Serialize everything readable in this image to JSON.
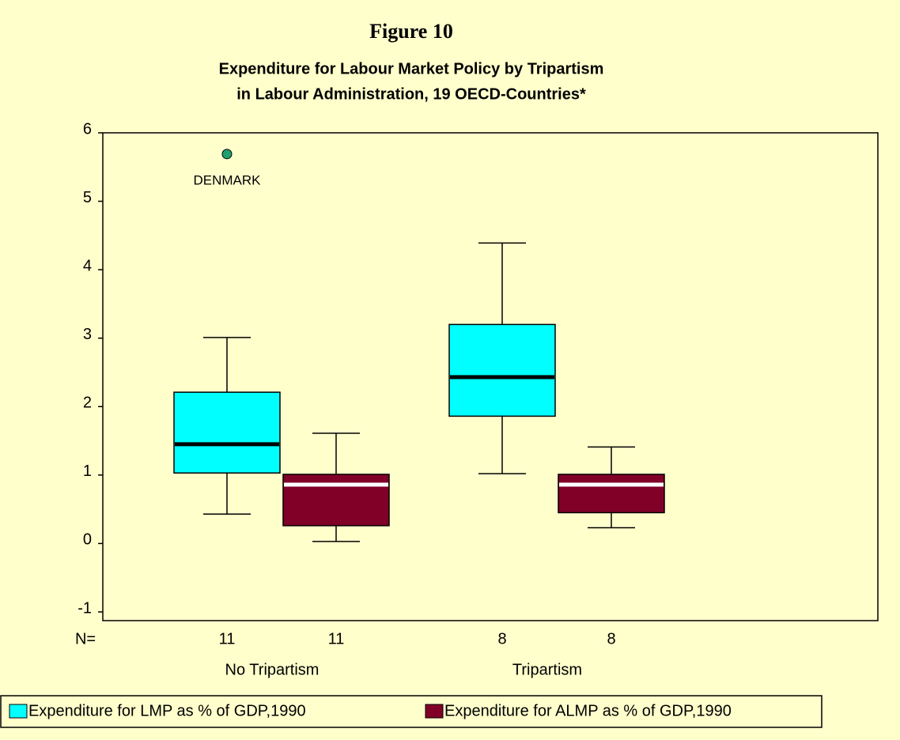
{
  "chart_data": {
    "type": "box",
    "title": "Figure 10",
    "subtitle": [
      "Expenditure for Labour Market Policy by Tripartism",
      "in Labour Administration, 19 OECD-Countries*"
    ],
    "groups": [
      "No Tripartism",
      "Tripartism"
    ],
    "n_label": "N=",
    "ylim": [
      -1,
      6
    ],
    "yticks": [
      -1,
      0,
      1,
      2,
      3,
      4,
      5,
      6
    ],
    "series": [
      {
        "name": "Expenditure for LMP as % of GDP,1990",
        "color": "#00ffff",
        "median_color": "#000000",
        "boxes": [
          {
            "whisker_low": 0.43,
            "q1": 1.03,
            "median": 1.45,
            "q3": 2.21,
            "whisker_high": 3.01,
            "n": 11,
            "outliers": [
              {
                "value": 5.69,
                "label": "DENMARK"
              }
            ]
          },
          {
            "whisker_low": 1.02,
            "q1": 1.86,
            "median": 2.43,
            "q3": 3.2,
            "whisker_high": 4.39,
            "n": 8,
            "outliers": []
          }
        ]
      },
      {
        "name": "Expenditure for ALMP as % of GDP,1990",
        "color": "#800028",
        "median_color": "#ffffff",
        "boxes": [
          {
            "whisker_low": 0.03,
            "q1": 0.26,
            "median": 0.86,
            "q3": 1.01,
            "whisker_high": 1.61,
            "n": 11,
            "outliers": []
          },
          {
            "whisker_low": 0.23,
            "q1": 0.45,
            "median": 0.86,
            "q3": 1.01,
            "whisker_high": 1.41,
            "n": 8,
            "outliers": []
          }
        ]
      }
    ]
  }
}
